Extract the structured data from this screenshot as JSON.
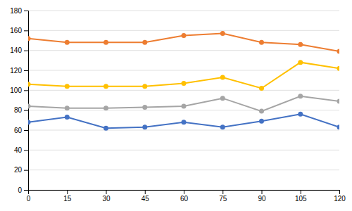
{
  "chart_data": {
    "type": "line",
    "x": [
      0,
      15,
      30,
      45,
      60,
      75,
      90,
      105,
      120
    ],
    "series": [
      {
        "color": "#4472C4",
        "marker": "circle",
        "values": [
          68,
          73,
          62,
          63,
          68,
          63,
          69,
          76,
          63
        ]
      },
      {
        "color": "#ED7D31",
        "marker": "circle",
        "values": [
          152,
          148,
          148,
          148,
          155,
          157,
          148,
          146,
          139
        ]
      },
      {
        "color": "#A5A5A5",
        "marker": "circle",
        "values": [
          84,
          82,
          82,
          83,
          84,
          92,
          79,
          94,
          89
        ]
      },
      {
        "color": "#FFC000",
        "marker": "circle",
        "values": [
          106,
          104,
          104,
          104,
          107,
          113,
          102,
          128,
          122
        ]
      }
    ],
    "xlim": [
      0,
      120
    ],
    "xticks": [
      0,
      15,
      30,
      45,
      60,
      75,
      90,
      105,
      120
    ],
    "ylim": [
      0,
      180
    ],
    "yticks": [
      0,
      20,
      40,
      60,
      80,
      100,
      120,
      140,
      160,
      180
    ],
    "grid": "y"
  }
}
